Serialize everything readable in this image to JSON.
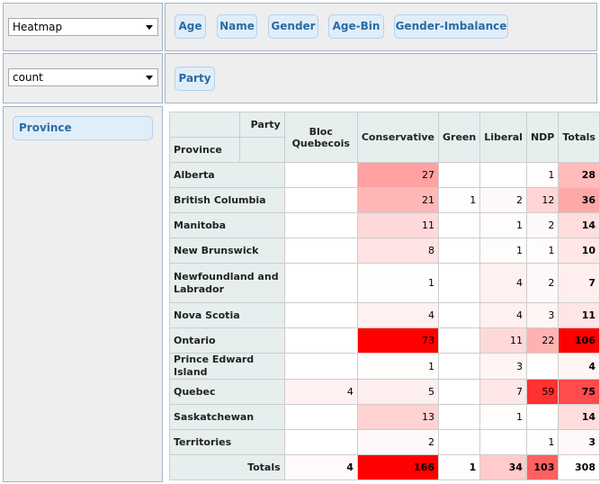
{
  "renderer": {
    "selected": "Heatmap"
  },
  "aggregator": {
    "selected": "count"
  },
  "unused_attributes": [
    "Age",
    "Name",
    "Gender",
    "Age-Bin",
    "Gender-Imbalance"
  ],
  "column_attribute": "Party",
  "row_attribute": "Province",
  "table": {
    "col_attr_label": "Party",
    "row_attr_label": "Province",
    "columns": [
      "Bloc Quebecois",
      "Conservative",
      "Green",
      "Liberal",
      "NDP"
    ],
    "totals_label": "Totals",
    "rows": [
      {
        "label": "Alberta",
        "values": [
          "",
          "27",
          "",
          "",
          "1"
        ],
        "total": "28"
      },
      {
        "label": "British Columbia",
        "values": [
          "",
          "21",
          "1",
          "2",
          "12"
        ],
        "total": "36"
      },
      {
        "label": "Manitoba",
        "values": [
          "",
          "11",
          "",
          "1",
          "2"
        ],
        "total": "14"
      },
      {
        "label": "New Brunswick",
        "values": [
          "",
          "8",
          "",
          "1",
          "1"
        ],
        "total": "10"
      },
      {
        "label": "Newfoundland and Labrador",
        "values": [
          "",
          "1",
          "",
          "4",
          "2"
        ],
        "total": "7"
      },
      {
        "label": "Nova Scotia",
        "values": [
          "",
          "4",
          "",
          "4",
          "3"
        ],
        "total": "11"
      },
      {
        "label": "Ontario",
        "values": [
          "",
          "73",
          "",
          "11",
          "22"
        ],
        "total": "106"
      },
      {
        "label": "Prince Edward Island",
        "values": [
          "",
          "1",
          "",
          "3",
          ""
        ],
        "total": "4"
      },
      {
        "label": "Quebec",
        "values": [
          "4",
          "5",
          "",
          "7",
          "59"
        ],
        "total": "75"
      },
      {
        "label": "Saskatchewan",
        "values": [
          "",
          "13",
          "",
          "1",
          ""
        ],
        "total": "14"
      },
      {
        "label": "Territories",
        "values": [
          "",
          "2",
          "",
          "",
          "1"
        ],
        "total": "3"
      }
    ],
    "column_totals": [
      "4",
      "166",
      "1",
      "34",
      "103"
    ],
    "grand_total": "308"
  },
  "colors": {
    "heat": "#ff0000",
    "header_bg": "#e6eeee",
    "pill_text": "#2b6aa3",
    "pill_bg": "#e0eefa"
  }
}
